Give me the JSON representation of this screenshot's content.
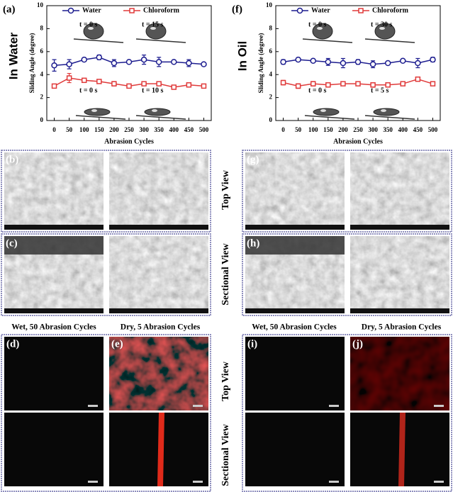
{
  "chart_data": [
    {
      "type": "line",
      "label": "(a)",
      "side_label": "In Water",
      "annotations": [
        "t = 0 s",
        "t = 15 s",
        "t = 0 s",
        "t = 10 s"
      ],
      "x_label": "Abrasion Cycles",
      "y_label": "Sliding Angle (degree)",
      "x": [
        0,
        50,
        100,
        150,
        200,
        250,
        300,
        350,
        400,
        450,
        500
      ],
      "xlim": [
        -25,
        525
      ],
      "xticks": [
        0,
        50,
        100,
        150,
        200,
        250,
        300,
        350,
        400,
        450,
        500
      ],
      "ylim": [
        0,
        10
      ],
      "yticks": [
        0,
        2,
        4,
        6,
        8,
        10
      ],
      "series": [
        {
          "name": "Water",
          "color": "#1c1c8f",
          "marker": "circle",
          "values": [
            4.8,
            4.9,
            5.3,
            5.5,
            5.0,
            5.1,
            5.3,
            5.1,
            5.1,
            5.0,
            4.9
          ],
          "errors": [
            0.5,
            0.4,
            0.1,
            0.2,
            0.3,
            0.1,
            0.4,
            0.4,
            0.1,
            0.3,
            0.1
          ]
        },
        {
          "name": "Chloroform",
          "color": "#e03a3a",
          "marker": "square",
          "values": [
            3.0,
            3.7,
            3.5,
            3.4,
            3.2,
            3.0,
            3.2,
            3.2,
            2.9,
            3.1,
            3.0
          ],
          "errors": [
            0.1,
            0.4,
            0.1,
            0.1,
            0.2,
            0.1,
            0.1,
            0.1,
            0.1,
            0.1,
            0.1
          ]
        }
      ]
    },
    {
      "type": "line",
      "label": "(f)",
      "side_label": "In Oil",
      "annotations": [
        "t = 0 s",
        "t = 30 s",
        "t = 0 s",
        "t = 5 s"
      ],
      "x_label": "Abrasion Cycles",
      "y_label": "Sliding Angle (degree)",
      "x": [
        0,
        50,
        100,
        150,
        200,
        250,
        300,
        350,
        400,
        450,
        500
      ],
      "xlim": [
        -25,
        525
      ],
      "xticks": [
        0,
        50,
        100,
        150,
        200,
        250,
        300,
        350,
        400,
        450,
        500
      ],
      "ylim": [
        0,
        10
      ],
      "yticks": [
        0,
        2,
        4,
        6,
        8,
        10
      ],
      "series": [
        {
          "name": "Water",
          "color": "#1c1c8f",
          "marker": "circle",
          "values": [
            5.1,
            5.3,
            5.2,
            5.1,
            5.0,
            5.1,
            4.9,
            5.0,
            5.2,
            5.0,
            5.3
          ],
          "errors": [
            0.2,
            0.1,
            0.1,
            0.3,
            0.4,
            0.2,
            0.3,
            0.1,
            0.1,
            0.4,
            0.2
          ]
        },
        {
          "name": "Chloroform",
          "color": "#e03a3a",
          "marker": "square",
          "values": [
            3.3,
            3.0,
            3.2,
            3.1,
            3.2,
            3.2,
            3.1,
            3.1,
            3.2,
            3.6,
            3.2
          ],
          "errors": [
            0.2,
            0.2,
            0.2,
            0.1,
            0.1,
            0.1,
            0.2,
            0.1,
            0.1,
            0.1,
            0.1
          ]
        }
      ]
    }
  ],
  "panels": {
    "sem": [
      "(b)",
      "(c)",
      "(g)",
      "(h)"
    ],
    "fluorescence": [
      "(d)",
      "(e)",
      "(i)",
      "(j)"
    ]
  },
  "view_labels": [
    "Top View",
    "Sectional View",
    "Top View",
    "Sectional View"
  ],
  "captions": [
    "Wet, 50 Abrasion Cycles",
    "Dry, 5 Abrasion Cycles",
    "Wet, 50 Abrasion Cycles",
    "Dry, 5 Abrasion Cycles"
  ]
}
